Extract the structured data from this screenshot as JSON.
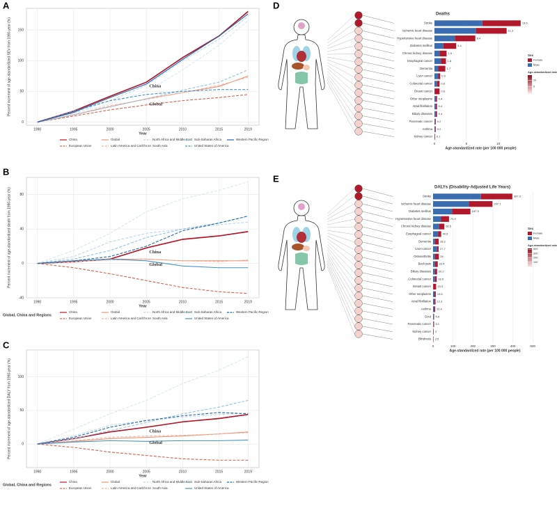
{
  "chart_data": [
    {
      "type": "line",
      "panel": "A",
      "ylabel": "Percent increment of age-standardized SEV from 1990-year (%)",
      "xlabel": "Year",
      "x": [
        1990,
        1995,
        2000,
        2005,
        2010,
        2015,
        2019
      ],
      "xlim": [
        1988.5,
        2020.5
      ],
      "xticks": [
        1990,
        1995,
        2000,
        2005,
        2010,
        2015,
        2019
      ],
      "ylim": [
        -5,
        185
      ],
      "yticks": [
        0,
        50,
        100,
        150
      ],
      "grid": true,
      "annotations": [
        "China",
        "Global"
      ],
      "series": [
        {
          "name": "China",
          "color": "#b2182b",
          "style": "solid",
          "values": [
            0,
            18,
            42,
            65,
            105,
            140,
            180
          ]
        },
        {
          "name": "European Union",
          "color": "#d6604d",
          "style": "dashed",
          "values": [
            0,
            10,
            20,
            28,
            35,
            40,
            45
          ]
        },
        {
          "name": "Global",
          "color": "#e8927a",
          "style": "solid",
          "values": [
            0,
            12,
            25,
            38,
            48,
            58,
            75
          ]
        },
        {
          "name": "Latin America and Caribbean",
          "color": "#f4b6a0",
          "style": "dashed",
          "values": [
            0,
            12,
            27,
            37,
            48,
            60,
            73
          ]
        },
        {
          "name": "North Africa and Middle East",
          "color": "#bcd8ea",
          "style": "dashed",
          "values": [
            0,
            15,
            35,
            60,
            100,
            135,
            172
          ]
        },
        {
          "name": "South Asia",
          "color": "#d6e8f3",
          "style": "dashed",
          "values": [
            0,
            14,
            30,
            50,
            85,
            125,
            165
          ]
        },
        {
          "name": "Sub-Saharan Africa",
          "color": "#92c5de",
          "style": "dashed",
          "values": [
            0,
            12,
            25,
            38,
            52,
            65,
            85
          ]
        },
        {
          "name": "United States of America",
          "color": "#4393c3",
          "style": "dashed",
          "values": [
            0,
            18,
            35,
            45,
            50,
            53,
            53
          ]
        },
        {
          "name": "Western Pacific Region",
          "color": "#2166ac",
          "style": "solid",
          "values": [
            0,
            16,
            40,
            62,
            102,
            140,
            176
          ]
        }
      ]
    },
    {
      "type": "line",
      "panel": "B",
      "ylabel": "Percent increment of age-standardized death from 1990-year (%)",
      "xlabel": "Year",
      "x": [
        1990,
        1995,
        2000,
        2005,
        2010,
        2015,
        2019
      ],
      "xlim": [
        1988.5,
        2020.5
      ],
      "xticks": [
        1990,
        1995,
        2000,
        2005,
        2010,
        2015,
        2019
      ],
      "ylim": [
        -40,
        100
      ],
      "yticks": [
        -40,
        0,
        40,
        80
      ],
      "grid": true,
      "annotations": [
        "China",
        "Global"
      ],
      "legend_title": "Global, China and Regions",
      "series": [
        {
          "name": "China",
          "color": "#b2182b",
          "style": "solid",
          "values": [
            0,
            2,
            5,
            18,
            28,
            32,
            37
          ]
        },
        {
          "name": "European Union",
          "color": "#d6604d",
          "style": "dashed",
          "values": [
            0,
            -5,
            -12,
            -20,
            -28,
            -33,
            -35
          ]
        },
        {
          "name": "Global",
          "color": "#e8927a",
          "style": "solid",
          "values": [
            0,
            3,
            5,
            5,
            3,
            3,
            3
          ]
        },
        {
          "name": "Latin America and Caribbean",
          "color": "#f4b6a0",
          "style": "dashed",
          "values": [
            0,
            2,
            4,
            5,
            3,
            2,
            4
          ]
        },
        {
          "name": "North Africa and Middle East",
          "color": "#bcd8ea",
          "style": "dashed",
          "values": [
            0,
            8,
            25,
            35,
            40,
            45,
            48
          ]
        },
        {
          "name": "South Asia",
          "color": "#d6e8f3",
          "style": "dashed",
          "values": [
            0,
            15,
            35,
            60,
            75,
            85,
            95
          ]
        },
        {
          "name": "Sub-Saharan Africa",
          "color": "#92c5de",
          "style": "dashed",
          "values": [
            0,
            5,
            15,
            30,
            40,
            47,
            55
          ]
        },
        {
          "name": "United States of America",
          "color": "#4393c3",
          "style": "solid",
          "values": [
            0,
            3,
            5,
            3,
            -3,
            -5,
            -5
          ]
        },
        {
          "name": "Western Pacific Region",
          "color": "#2166ac",
          "style": "dashed",
          "values": [
            0,
            3,
            8,
            20,
            38,
            47,
            55
          ]
        }
      ]
    },
    {
      "type": "line",
      "panel": "C",
      "ylabel": "Percent increment of age-standardized DALY from 1990-year (%)",
      "xlabel": "Year",
      "x": [
        1990,
        1995,
        2000,
        2005,
        2010,
        2015,
        2019
      ],
      "xlim": [
        1988.5,
        2020.5
      ],
      "xticks": [
        1990,
        1995,
        2000,
        2005,
        2010,
        2015,
        2019
      ],
      "ylim": [
        -35,
        140
      ],
      "yticks": [
        0,
        50,
        100
      ],
      "grid": true,
      "annotations": [
        "China",
        "Global"
      ],
      "legend_title": "Global, China and Regions",
      "series": [
        {
          "name": "China",
          "color": "#b2182b",
          "style": "solid",
          "values": [
            0,
            8,
            18,
            25,
            33,
            38,
            44
          ]
        },
        {
          "name": "European Union",
          "color": "#d6604d",
          "style": "dashed",
          "values": [
            0,
            -5,
            -12,
            -17,
            -22,
            -24,
            -24
          ]
        },
        {
          "name": "Global",
          "color": "#e8927a",
          "style": "solid",
          "values": [
            0,
            4,
            8,
            10,
            12,
            15,
            18
          ]
        },
        {
          "name": "Latin America and Caribbean",
          "color": "#f4b6a0",
          "style": "dashed",
          "values": [
            0,
            5,
            10,
            12,
            13,
            15,
            17
          ]
        },
        {
          "name": "North Africa and Middle East",
          "color": "#bcd8ea",
          "style": "dashed",
          "values": [
            0,
            12,
            28,
            35,
            40,
            44,
            46
          ]
        },
        {
          "name": "South Asia",
          "color": "#d6e8f3",
          "style": "dashed",
          "values": [
            0,
            22,
            45,
            65,
            90,
            110,
            130
          ]
        },
        {
          "name": "Sub-Saharan Africa",
          "color": "#92c5de",
          "style": "dashed",
          "values": [
            0,
            8,
            20,
            32,
            45,
            55,
            65
          ]
        },
        {
          "name": "United States of America",
          "color": "#4393c3",
          "style": "solid",
          "values": [
            0,
            3,
            5,
            4,
            5,
            5,
            6
          ]
        },
        {
          "name": "Western Pacific Region",
          "color": "#2166ac",
          "style": "dashed",
          "values": [
            0,
            10,
            25,
            35,
            42,
            47,
            45
          ]
        }
      ]
    },
    {
      "type": "bar",
      "panel": "D",
      "title": "Deaths",
      "xlabel": "Age-standardized rate (per 100 000 people)",
      "categories": [
        "Stroke",
        "Ischemic heart disease",
        "Hypertensive heart disease",
        "Diabetes mellitus",
        "Chronic kidney disease",
        "Esophageal cancer",
        "Dementia",
        "Liver cancer",
        "Colorectal cancer",
        "Breast cancer",
        "Other neoplasms",
        "Atrial fibrillation",
        "Biliary diseases",
        "Pancreatic cancer",
        "Asthma",
        "Kidney cancer"
      ],
      "totals": [
        13.5,
        11.3,
        6.4,
        3.4,
        1.9,
        1.8,
        1.7,
        0.9,
        0.8,
        0.8,
        0.4,
        0.4,
        0.4,
        0.2,
        0.2,
        0.1
      ],
      "series": [
        {
          "name": "Male",
          "color": "#3a6db0",
          "values": [
            7.5,
            6.5,
            3.2,
            1.4,
            0.8,
            1.0,
            0.6,
            0.6,
            0.4,
            0.05,
            0.2,
            0.2,
            0.2,
            0.1,
            0.1,
            0.05
          ]
        },
        {
          "name": "Female",
          "color": "#b2182b",
          "values": [
            6.0,
            4.8,
            3.2,
            2.0,
            1.1,
            0.8,
            1.1,
            0.3,
            0.4,
            0.75,
            0.2,
            0.2,
            0.2,
            0.1,
            0.1,
            0.05
          ]
        }
      ],
      "xlim": [
        0,
        14.5
      ],
      "xticks": [
        0,
        5,
        10
      ],
      "grid": true,
      "legend_title": "Sex",
      "colorbar": {
        "title": "Age-standardized rate",
        "lim": [
          0,
          14
        ],
        "ticks": [
          5,
          10
        ]
      }
    },
    {
      "type": "bar",
      "panel": "E",
      "title": "DALYs (Disability-Adjusted Life Years)",
      "xlabel": "Age-standardized rate (per 100 000 people)",
      "categories": [
        "Stroke",
        "Ischemic heart disease",
        "Diabetes mellitus",
        "Hypertensive heart disease",
        "Chronic kidney disease",
        "Esophageal cancer",
        "Dementia",
        "Liver cancer",
        "Osteoarthritis",
        "Back pain",
        "Biliary diseases",
        "Colorectal cancer",
        "Breast cancer",
        "Other neoplasms",
        "Atrial fibrillation",
        "Asthma",
        "Gout",
        "Pancreatic cancer",
        "Kidney cancer",
        "Blindness"
      ],
      "totals": [
        397.3,
        297.7,
        187.3,
        79.9,
        56.5,
        40.6,
        28.2,
        27.7,
        29,
        23.4,
        20.2,
        18.5,
        15.3,
        13.5,
        12.3,
        10.4,
        5.6,
        5.1,
        3.0,
        2.5
      ],
      "series": [
        {
          "name": "Male",
          "color": "#3a6db0",
          "values": [
            240,
            180,
            95,
            40,
            30,
            25,
            10,
            20,
            10,
            10,
            10,
            10,
            0.5,
            7,
            6,
            5,
            4,
            2.5,
            1.5,
            1
          ]
        },
        {
          "name": "Female",
          "color": "#b2182b",
          "values": [
            157.3,
            117.7,
            92.3,
            39.9,
            26.5,
            15.6,
            18.2,
            7.7,
            19,
            13.4,
            10.2,
            8.5,
            14.8,
            6.5,
            6.3,
            5.4,
            1.6,
            2.6,
            1.5,
            1.5
          ]
        }
      ],
      "xlim": [
        0,
        520
      ],
      "xticks": [
        0,
        100,
        200,
        300,
        400,
        500
      ],
      "grid": true,
      "legend_title": "Sex",
      "colorbar": {
        "title": "Age-standardized rate",
        "lim": [
          0,
          420
        ],
        "ticks": [
          100,
          200,
          300,
          400
        ]
      }
    }
  ]
}
